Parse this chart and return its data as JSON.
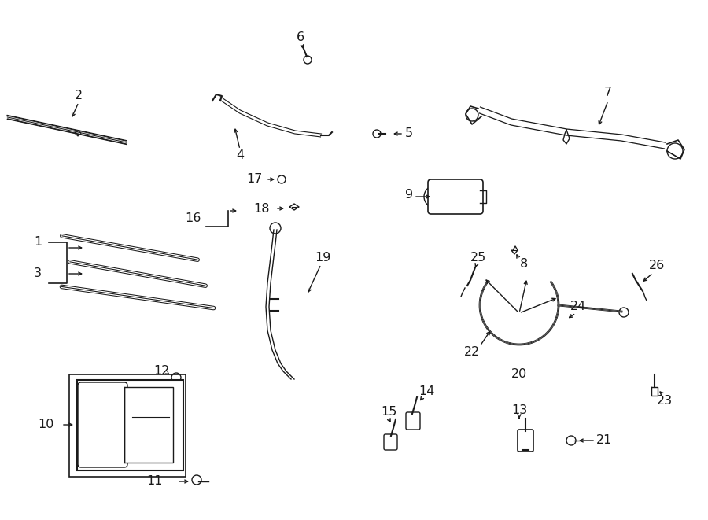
{
  "bg_color": "#ffffff",
  "lc": "#1a1a1a",
  "fs": 11.5,
  "lw": 1.2
}
